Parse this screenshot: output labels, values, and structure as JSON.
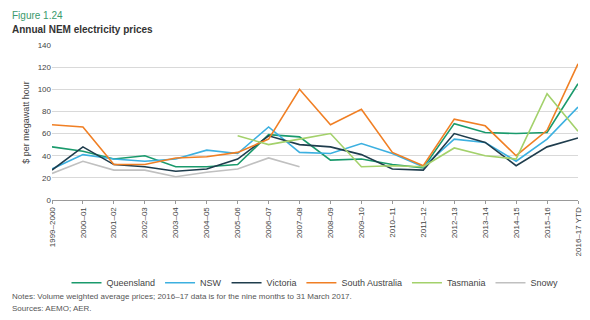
{
  "chart_data": {
    "type": "line",
    "figure_label": "Figure 1.24",
    "title": "Annual NEM electricity prices",
    "y_label": "$ per megawatt hour",
    "annotations": [
      "Notes: Volume weighted average prices; 2016–17 data is for the nine months to 31 March 2017.",
      "Sources: AEMO; AER."
    ],
    "categories": [
      "1999–2000",
      "2000–01",
      "2001–02",
      "2002–03",
      "2003–04",
      "2004–05",
      "2005–06",
      "2006–07",
      "2007–08",
      "2008–09",
      "2009–10",
      "2010–11",
      "2011–12",
      "2012–13",
      "2013–14",
      "2014–15",
      "2015–16",
      "2016–17 YTD"
    ],
    "series": [
      {
        "name": "Queensland",
        "color": "#1a9a6c",
        "values": [
          48,
          44,
          37,
          40,
          30,
          30,
          32,
          59,
          57,
          36,
          37,
          32,
          29,
          69,
          61,
          60,
          61,
          105
        ]
      },
      {
        "name": "NSW",
        "color": "#3cb0e0",
        "values": [
          28,
          41,
          37,
          35,
          37,
          45,
          42,
          66,
          43,
          42,
          51,
          42,
          30,
          55,
          52,
          35,
          55,
          84
        ]
      },
      {
        "name": "Victoria",
        "color": "#1f3d4d",
        "values": [
          27,
          48,
          32,
          30,
          26,
          28,
          37,
          58,
          50,
          48,
          41,
          28,
          27,
          60,
          52,
          31,
          48,
          56
        ]
      },
      {
        "name": "South Australia",
        "color": "#f07f24",
        "values": [
          68,
          66,
          32,
          32,
          38,
          39,
          43,
          55,
          100,
          68,
          82,
          43,
          31,
          73,
          67,
          40,
          63,
          123
        ]
      },
      {
        "name": "Tasmania",
        "color": "#a3d16b",
        "values": [
          null,
          null,
          null,
          null,
          null,
          null,
          58,
          50,
          55,
          60,
          30,
          31,
          30,
          47,
          40,
          37,
          96,
          62
        ]
      },
      {
        "name": "Snowy",
        "color": "#c0c0c0",
        "values": [
          24,
          35,
          27,
          27,
          21,
          25,
          28,
          38,
          30,
          null,
          null,
          null,
          null,
          null,
          null,
          null,
          null,
          null
        ]
      }
    ],
    "ylim": [
      0,
      140
    ],
    "yticks": [
      0,
      20,
      40,
      60,
      80,
      100,
      120,
      140
    ],
    "grid": true,
    "legend": "bottom"
  }
}
